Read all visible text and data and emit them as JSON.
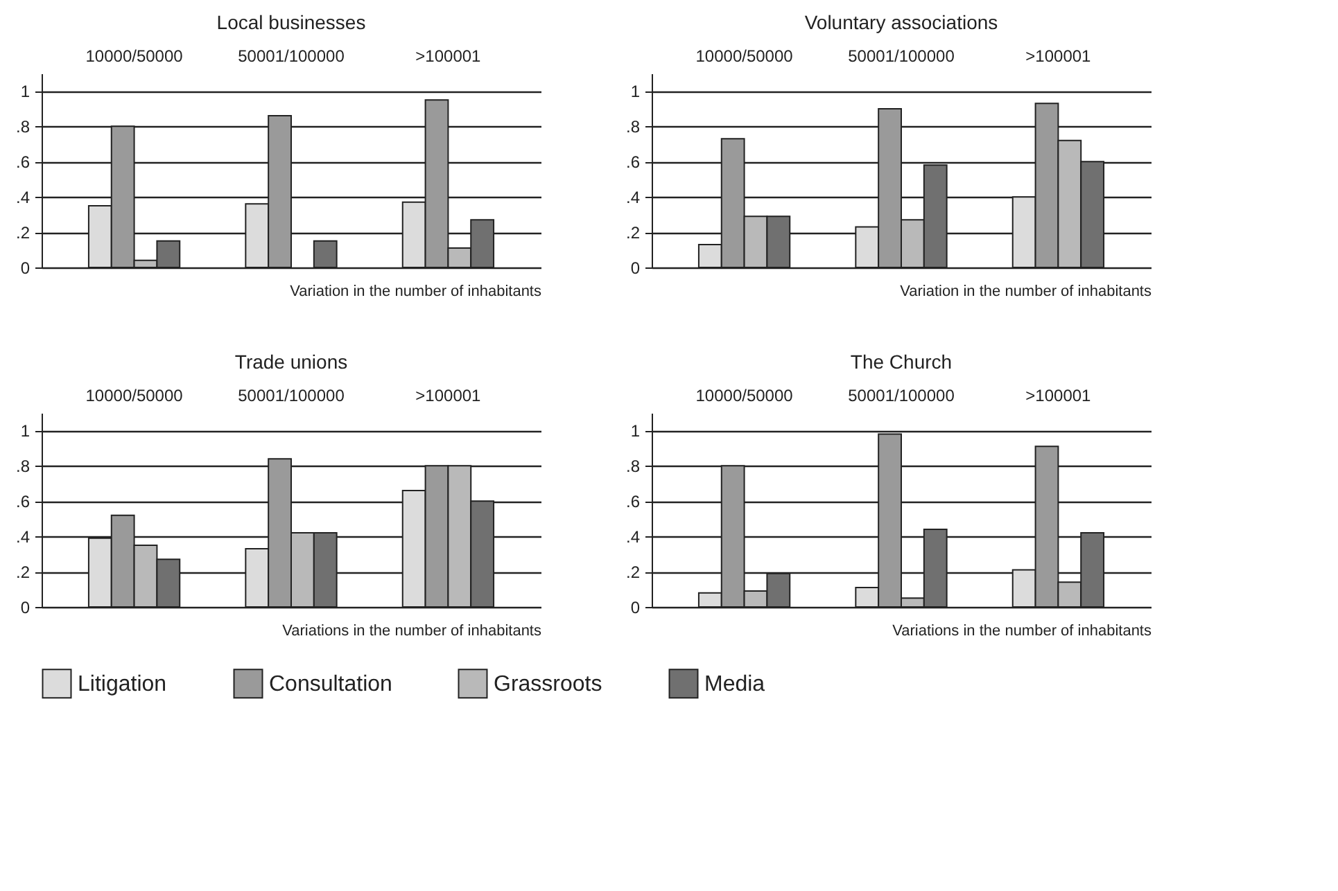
{
  "chart_data": [
    {
      "type": "bar",
      "title": "Local businesses",
      "xlabel": "Variation in the number of inhabitants",
      "categories": [
        "10000/50000",
        "50001/100000",
        ">100001"
      ],
      "series": [
        {
          "name": "Litigation",
          "color": "#dcdcdc",
          "values": [
            0.35,
            0.36,
            0.37
          ]
        },
        {
          "name": "Consultation",
          "color": "#9a9a9a",
          "values": [
            0.8,
            0.86,
            0.95
          ]
        },
        {
          "name": "Grassroots",
          "color": "#b9b9b9",
          "values": [
            0.04,
            null,
            0.11
          ]
        },
        {
          "name": "Media",
          "color": "#707070",
          "values": [
            0.15,
            0.15,
            0.27
          ]
        }
      ],
      "ylim": [
        0,
        1.1
      ],
      "yticks": [
        0,
        {
          "value": 0.2,
          "label": ".2"
        },
        {
          "value": 0.4,
          "label": ".4"
        },
        {
          "value": 0.6,
          "label": ".6"
        },
        {
          "value": 0.8,
          "label": ".8"
        },
        1
      ],
      "grid": "y",
      "legend": "bottom"
    },
    {
      "type": "bar",
      "title": "Voluntary associations",
      "xlabel": "Variation in the number of inhabitants",
      "categories": [
        "10000/50000",
        "50001/100000",
        ">100001"
      ],
      "series": [
        {
          "name": "Litigation",
          "color": "#dcdcdc",
          "values": [
            0.13,
            0.23,
            0.4
          ]
        },
        {
          "name": "Consultation",
          "color": "#9a9a9a",
          "values": [
            0.73,
            0.9,
            0.93
          ]
        },
        {
          "name": "Grassroots",
          "color": "#b9b9b9",
          "values": [
            0.29,
            0.27,
            0.72
          ]
        },
        {
          "name": "Media",
          "color": "#707070",
          "values": [
            0.29,
            0.58,
            0.6
          ]
        }
      ],
      "ylim": [
        0,
        1.1
      ],
      "yticks": [
        0,
        {
          "value": 0.2,
          "label": ".2"
        },
        {
          "value": 0.4,
          "label": ".4"
        },
        {
          "value": 0.6,
          "label": ".6"
        },
        {
          "value": 0.8,
          "label": ".8"
        },
        1
      ],
      "grid": "y",
      "legend": "bottom"
    },
    {
      "type": "bar",
      "title": "Trade unions",
      "xlabel": "Variations in the number of inhabitants",
      "categories": [
        "10000/50000",
        "50001/100000",
        ">100001"
      ],
      "series": [
        {
          "name": "Litigation",
          "color": "#dcdcdc",
          "values": [
            0.39,
            0.33,
            0.66
          ]
        },
        {
          "name": "Consultation",
          "color": "#9a9a9a",
          "values": [
            0.52,
            0.84,
            0.8
          ]
        },
        {
          "name": "Grassroots",
          "color": "#b9b9b9",
          "values": [
            0.35,
            0.42,
            0.8
          ]
        },
        {
          "name": "Media",
          "color": "#707070",
          "values": [
            0.27,
            0.42,
            0.6
          ]
        }
      ],
      "ylim": [
        0,
        1.1
      ],
      "yticks": [
        0,
        {
          "value": 0.2,
          "label": ".2"
        },
        {
          "value": 0.4,
          "label": ".4"
        },
        {
          "value": 0.6,
          "label": ".6"
        },
        {
          "value": 0.8,
          "label": ".8"
        },
        1
      ],
      "grid": "y",
      "legend": "bottom"
    },
    {
      "type": "bar",
      "title": "The Church",
      "xlabel": "Variations in the number of inhabitants",
      "categories": [
        "10000/50000",
        "50001/100000",
        ">100001"
      ],
      "series": [
        {
          "name": "Litigation",
          "color": "#dcdcdc",
          "values": [
            0.08,
            0.11,
            0.21
          ]
        },
        {
          "name": "Consultation",
          "color": "#9a9a9a",
          "values": [
            0.8,
            0.98,
            0.91
          ]
        },
        {
          "name": "Grassroots",
          "color": "#b9b9b9",
          "values": [
            0.09,
            0.05,
            0.14
          ]
        },
        {
          "name": "Media",
          "color": "#707070",
          "values": [
            0.19,
            0.44,
            0.42
          ]
        }
      ],
      "ylim": [
        0,
        1.1
      ],
      "yticks": [
        0,
        {
          "value": 0.2,
          "label": ".2"
        },
        {
          "value": 0.4,
          "label": ".4"
        },
        {
          "value": 0.6,
          "label": ".6"
        },
        {
          "value": 0.8,
          "label": ".8"
        },
        1
      ],
      "grid": "y",
      "legend": "bottom"
    }
  ]
}
